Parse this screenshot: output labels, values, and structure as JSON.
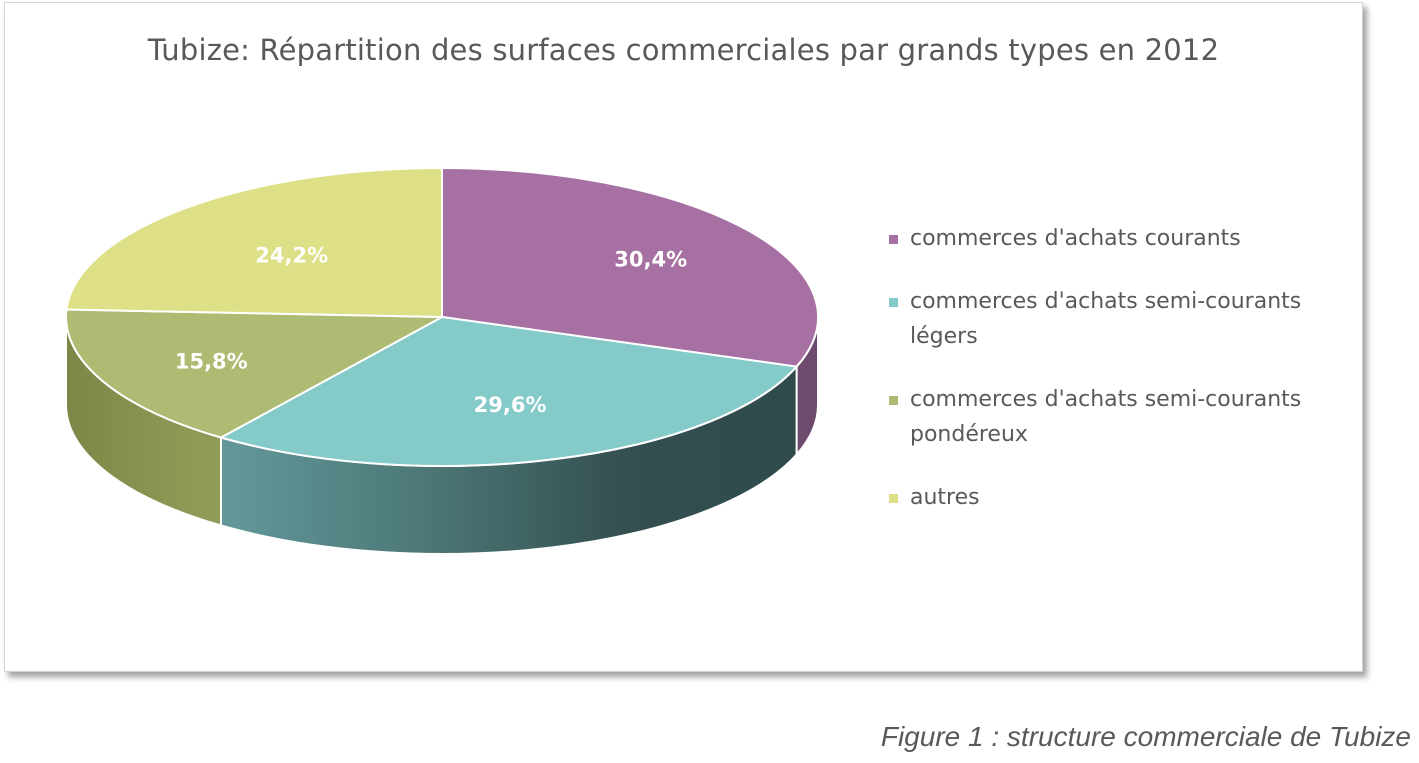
{
  "chart_data": {
    "type": "pie",
    "title": "Tubize: Répartition des surfaces commerciales par grands types en 2012",
    "categories": [
      "commerces d'achats courants",
      "commerces d'achats semi-courants légers",
      "commerces d'achats semi-courants pondéreux",
      "autres"
    ],
    "values": [
      30.4,
      29.6,
      15.8,
      24.2
    ],
    "labels": [
      "30,4%",
      "29,6%",
      "15,8%",
      "24,2%"
    ],
    "colors": [
      "#a671a2",
      "#84cac8",
      "#adbb73",
      "#dde087"
    ],
    "legend_position": "right",
    "style": "3d"
  },
  "legend": [
    {
      "lines": [
        "commerces d'achats courants"
      ]
    },
    {
      "lines": [
        "commerces d'achats semi-courants",
        "légers"
      ]
    },
    {
      "lines": [
        "commerces d'achats semi-courants",
        "pondéreux"
      ]
    },
    {
      "lines": [
        "autres"
      ]
    }
  ],
  "caption": "Figure 1 : structure commerciale de Tubize"
}
